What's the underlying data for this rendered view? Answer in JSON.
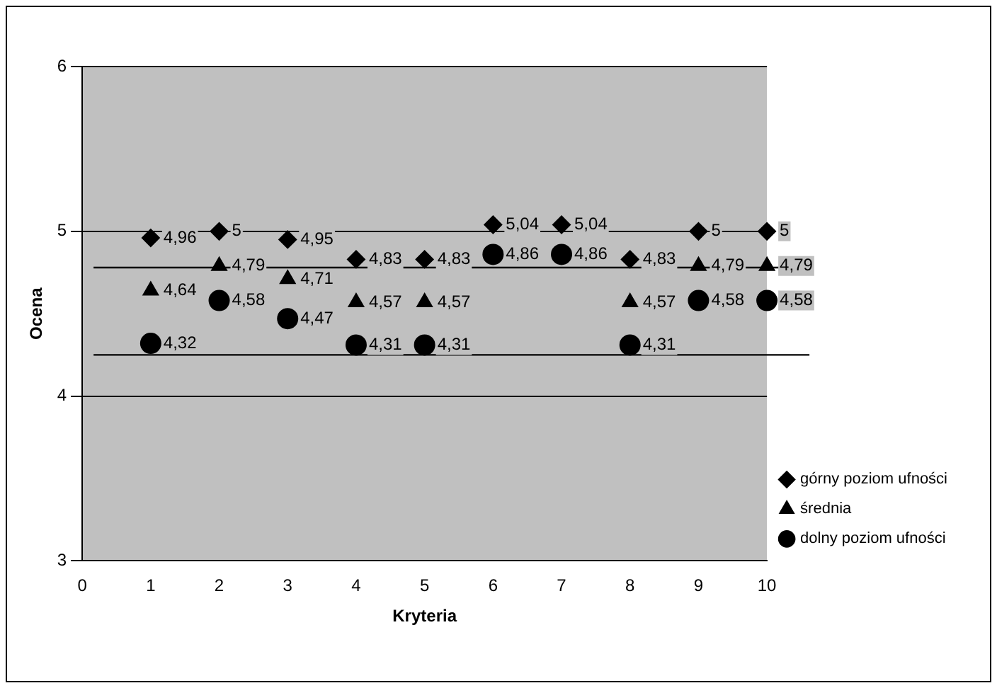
{
  "chart_data": {
    "type": "scatter",
    "xlabel": "Kryteria",
    "ylabel": "Ocena",
    "x": [
      1,
      2,
      3,
      4,
      5,
      6,
      7,
      8,
      9,
      10
    ],
    "series": [
      {
        "name": "górny poziom ufności",
        "color": "#000000",
        "marker": "diamond",
        "values": [
          4.96,
          5,
          4.95,
          4.83,
          4.83,
          5.04,
          5.04,
          4.83,
          5,
          5
        ],
        "value_labels": [
          "4,96",
          "5",
          "4,95",
          "4,83",
          "4,83",
          "5,04",
          "5,04",
          "4,83",
          "5",
          "5"
        ]
      },
      {
        "name": "średnia",
        "color": "#000000",
        "marker": "triangle",
        "values": [
          4.64,
          4.79,
          4.71,
          4.57,
          4.57,
          null,
          null,
          4.57,
          4.79,
          4.79
        ],
        "value_labels": [
          "4,64",
          "4,79",
          "4,71",
          "4,57",
          "4,57",
          null,
          null,
          "4,57",
          "4,79",
          "4,79"
        ]
      },
      {
        "name": "dolny poziom ufności",
        "color": "#000000",
        "marker": "circle",
        "values": [
          4.32,
          4.58,
          4.47,
          4.31,
          4.31,
          4.86,
          4.86,
          4.31,
          4.58,
          4.58
        ],
        "value_labels": [
          "4,32",
          "4,58",
          "4,47",
          "4,31",
          "4,31",
          "4,86",
          "4,86",
          "4,31",
          "4,58",
          "4,58"
        ]
      }
    ],
    "xlim": [
      0,
      10
    ],
    "xticks": [
      0,
      1,
      2,
      3,
      4,
      5,
      6,
      7,
      8,
      9,
      10
    ],
    "ylim": [
      3,
      6
    ],
    "yticks": [
      3,
      4,
      5,
      6
    ],
    "grid": "y",
    "legend": "right",
    "ref_lines": [
      {
        "axis": "y",
        "value": 4.78,
        "color": "#000000"
      },
      {
        "axis": "y",
        "value": 4.25,
        "color": "#000000"
      }
    ]
  }
}
